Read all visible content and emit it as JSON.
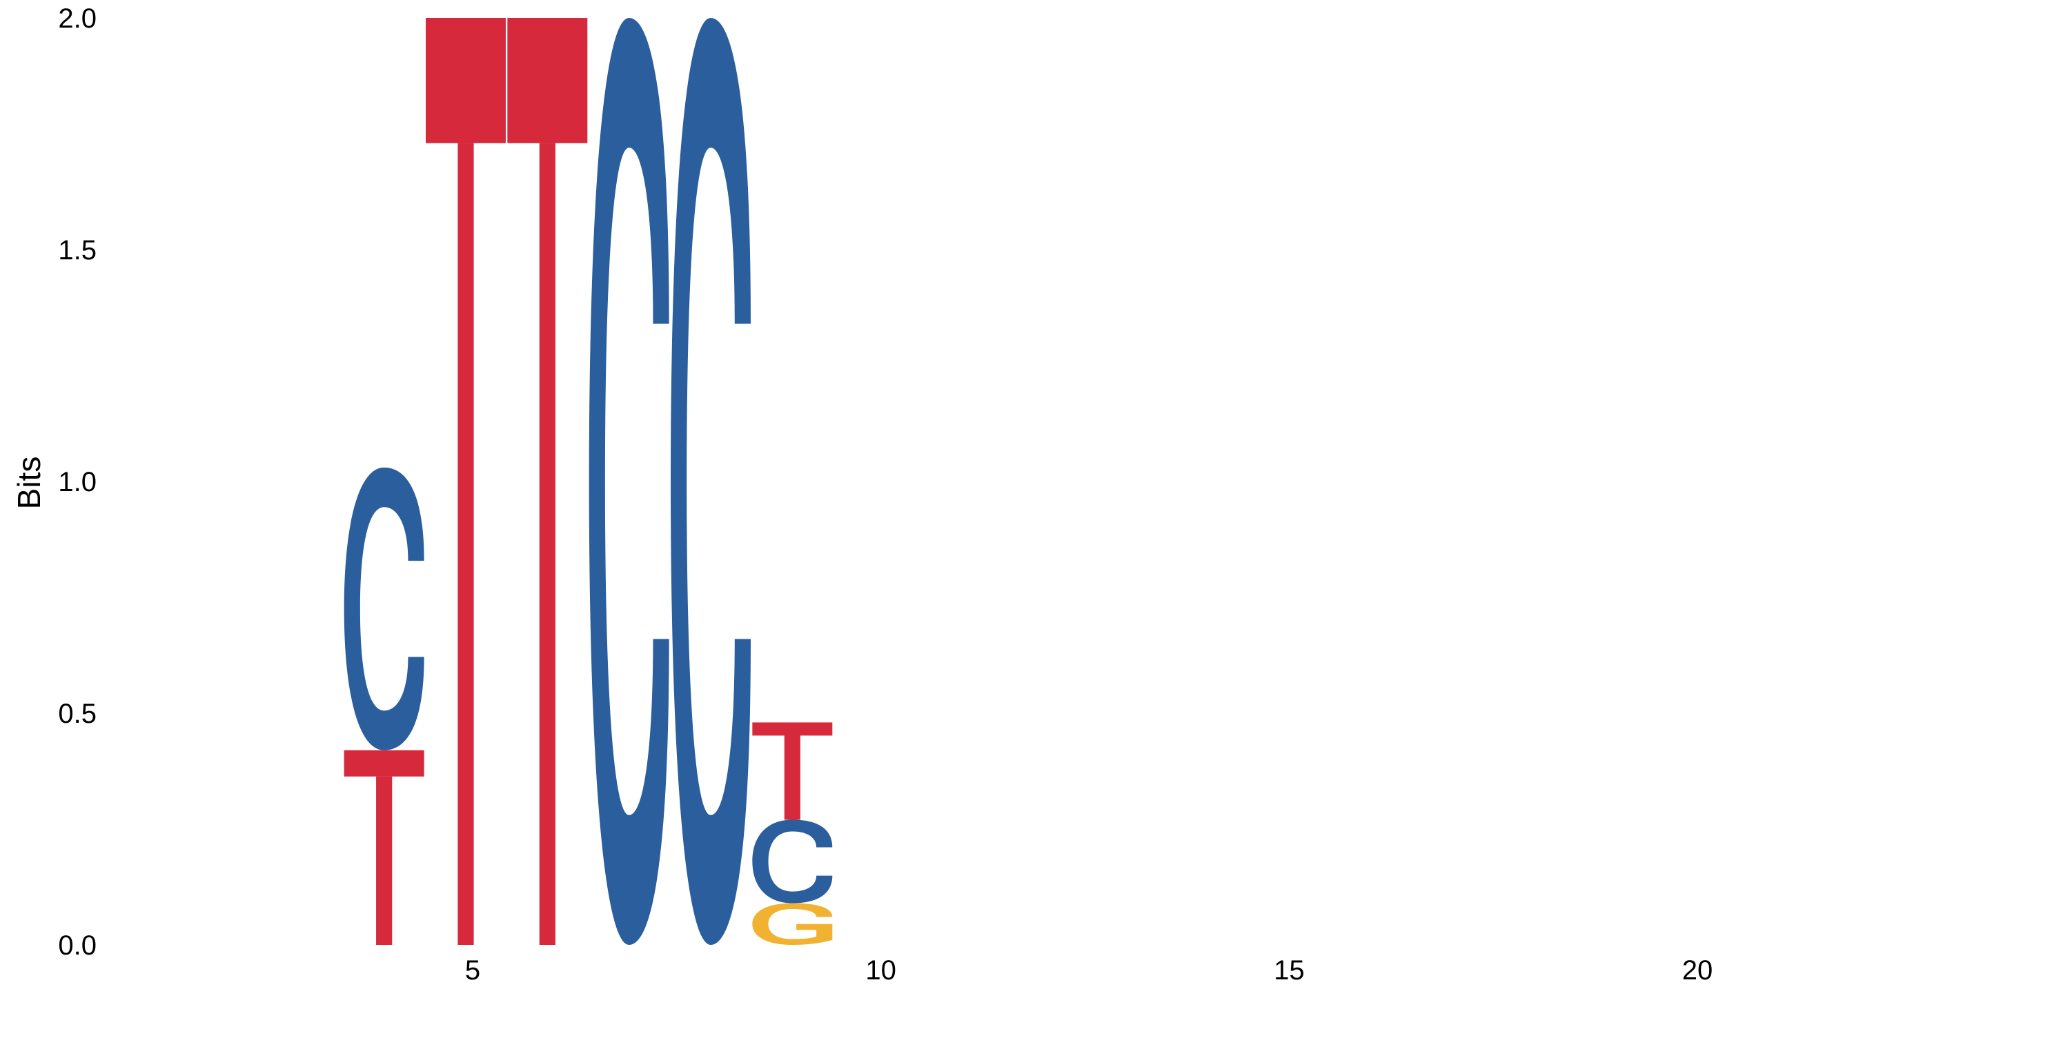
{
  "chart_data": {
    "type": "sequence-logo",
    "title": "",
    "xlabel": "",
    "ylabel": "Bits",
    "xlim": [
      0.5,
      25.5
    ],
    "ylim": [
      0,
      2.0
    ],
    "x_ticks": [
      5,
      10,
      15,
      20
    ],
    "y_ticks": [
      0.0,
      0.5,
      1.0,
      1.5,
      2.0
    ],
    "x_tick_labels": [
      "5",
      "10",
      "15",
      "20"
    ],
    "y_tick_labels": [
      "0.0",
      "0.5",
      "1.0",
      "1.5",
      "2.0"
    ],
    "grid": false,
    "legend": "none",
    "colors": {
      "A": "#2ca02c",
      "C": "#2a5e9c",
      "G": "#f2b231",
      "T": "#d62a3c"
    },
    "positions": [
      {
        "pos": 4,
        "stack": [
          {
            "letter": "T",
            "bits": 0.42
          },
          {
            "letter": "C",
            "bits": 0.61
          }
        ]
      },
      {
        "pos": 5,
        "stack": [
          {
            "letter": "T",
            "bits": 2.0
          }
        ]
      },
      {
        "pos": 6,
        "stack": [
          {
            "letter": "T",
            "bits": 2.0
          }
        ]
      },
      {
        "pos": 7,
        "stack": [
          {
            "letter": "C",
            "bits": 2.0
          }
        ]
      },
      {
        "pos": 8,
        "stack": [
          {
            "letter": "C",
            "bits": 2.0
          }
        ]
      },
      {
        "pos": 9,
        "stack": [
          {
            "letter": "G",
            "bits": 0.09
          },
          {
            "letter": "C",
            "bits": 0.18
          },
          {
            "letter": "T",
            "bits": 0.21
          }
        ]
      }
    ]
  }
}
